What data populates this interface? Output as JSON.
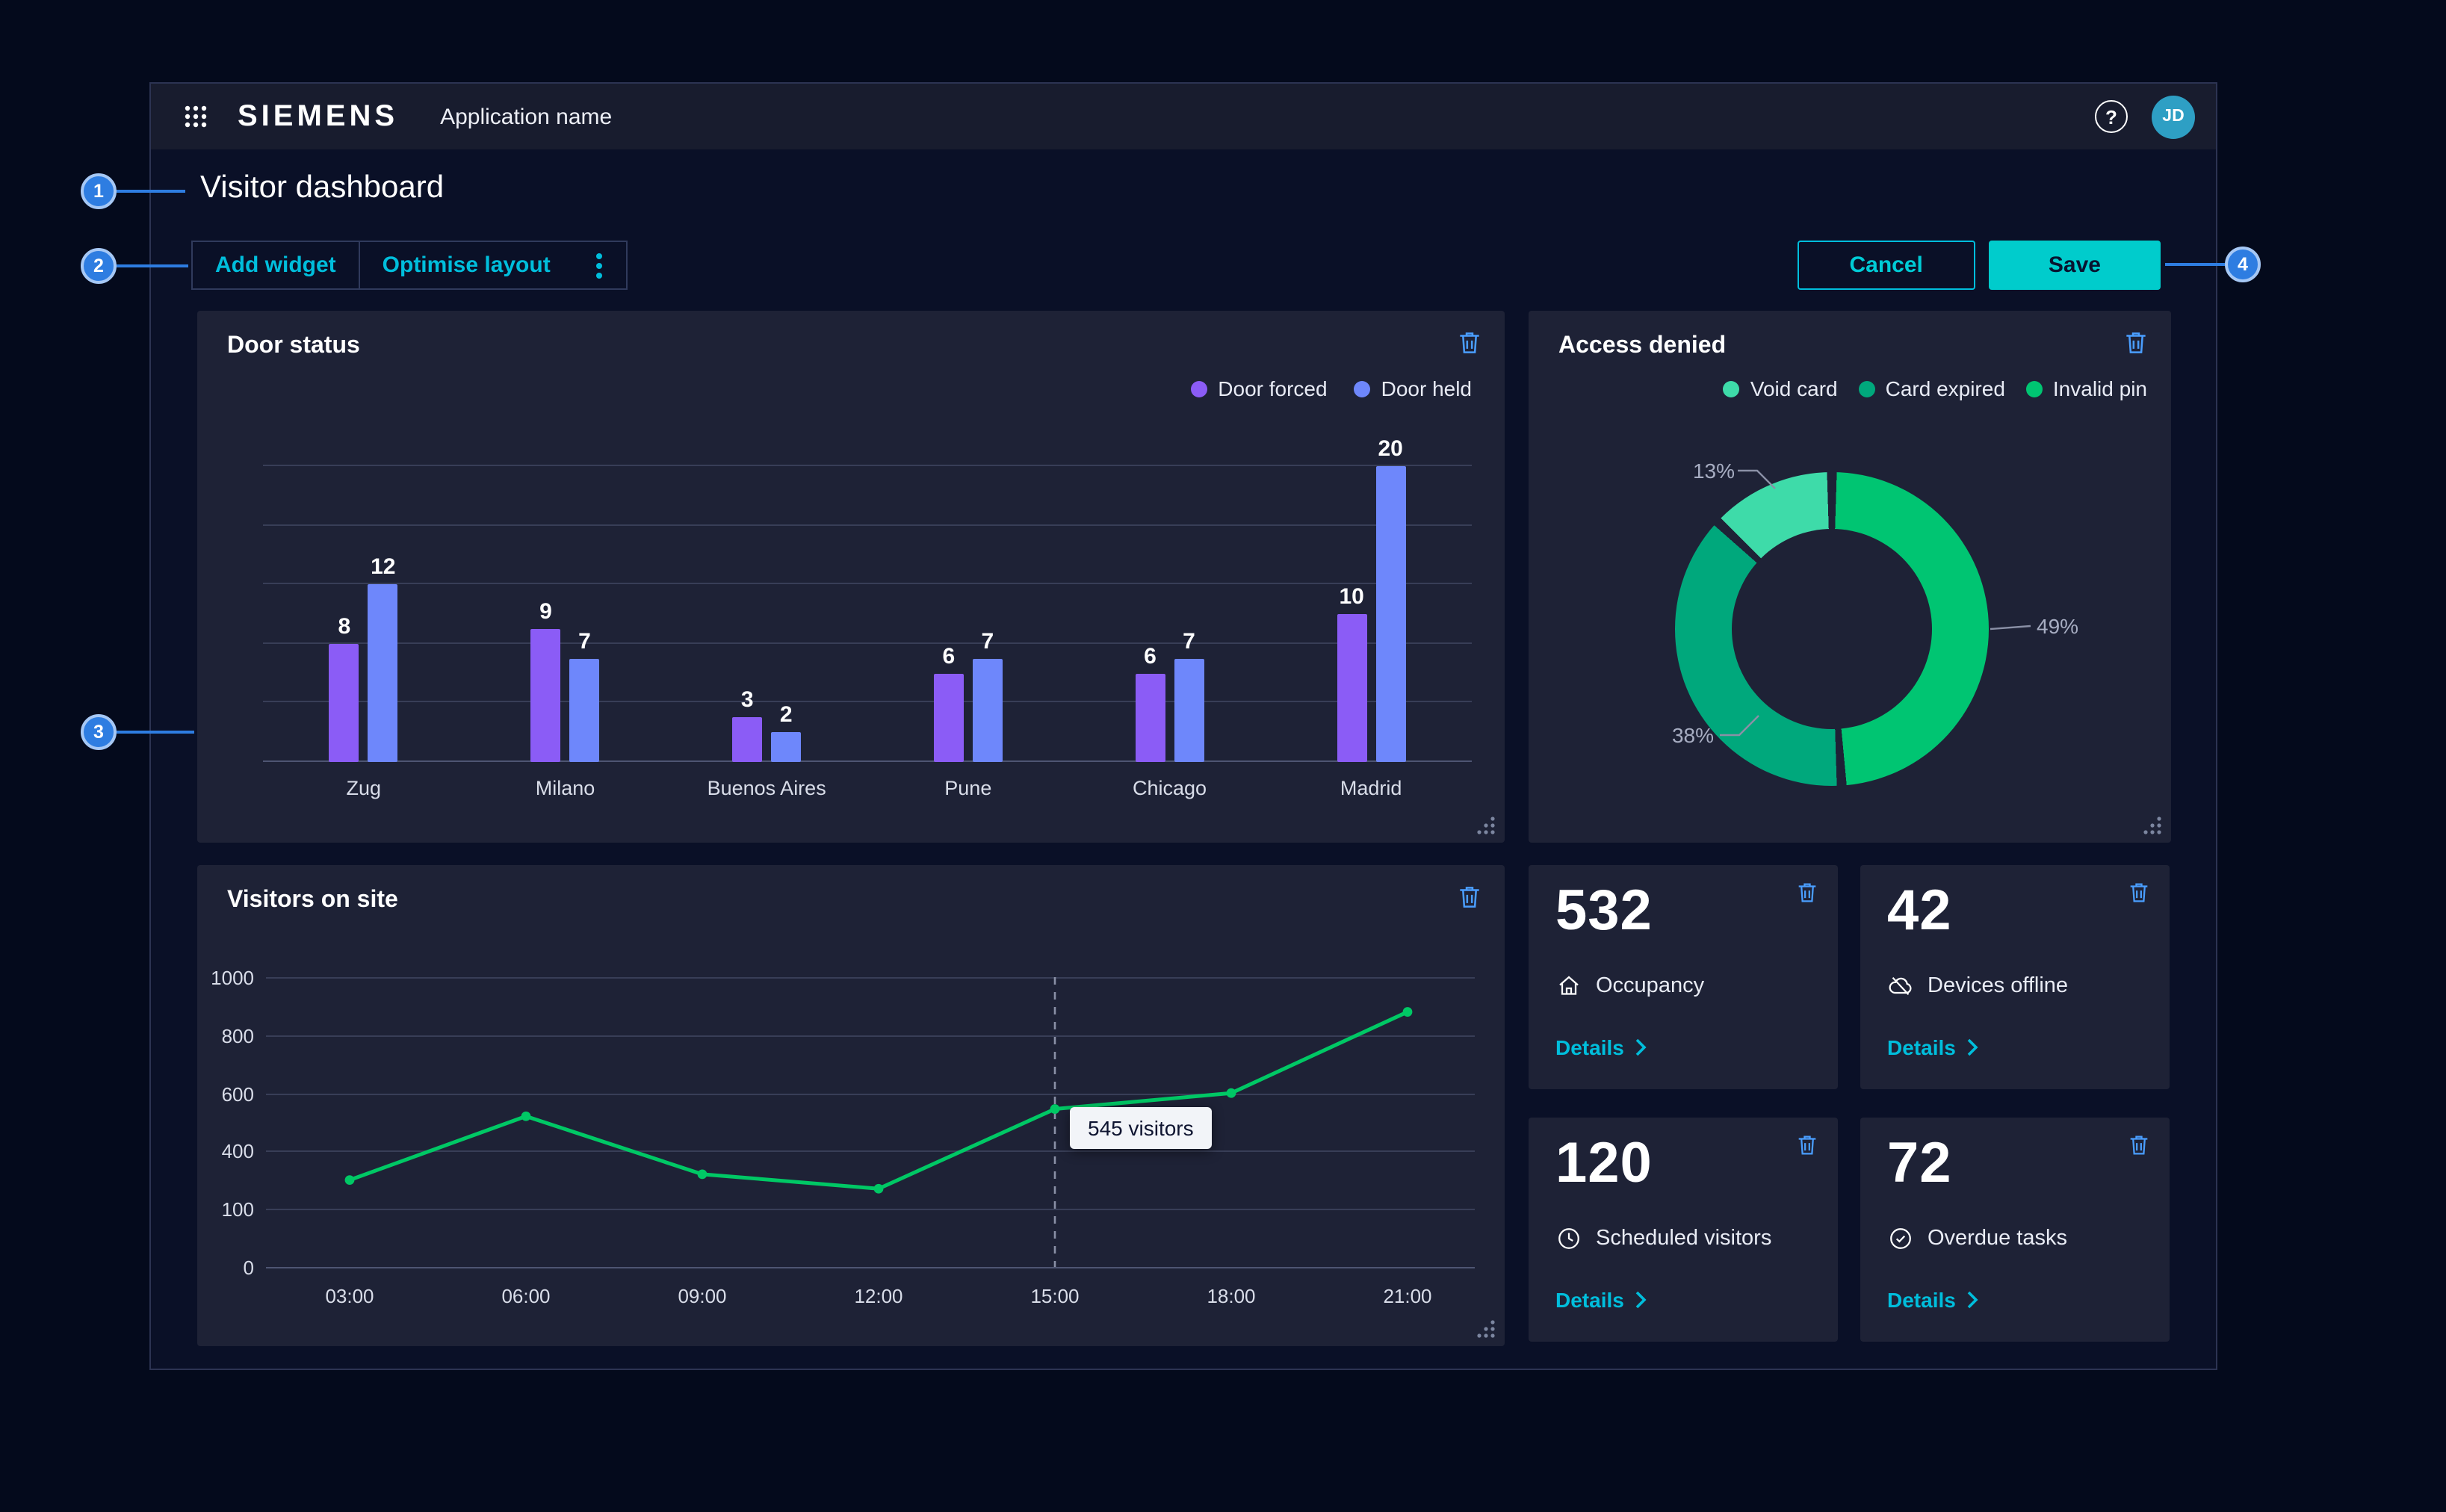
{
  "header": {
    "logo": "SIEMENS",
    "app_name": "Application name",
    "avatar_initials": "JD",
    "help_label": "?"
  },
  "page": {
    "title": "Visitor dashboard"
  },
  "toolbar": {
    "add_widget": "Add widget",
    "optimise_layout": "Optimise layout",
    "cancel": "Cancel",
    "save": "Save"
  },
  "annotations": {
    "n1": "1",
    "n2": "2",
    "n3": "3",
    "n4": "4"
  },
  "widgets": {
    "access_denied": {
      "legend": [
        {
          "label": "Void card",
          "color": "#3EDBA9"
        },
        {
          "label": "Card expired",
          "color": "#00A87C"
        },
        {
          "label": "Invalid pin",
          "color": "#00C572"
        }
      ]
    },
    "kpis": [
      {
        "value": "532",
        "label": "Occupancy",
        "details": "Details"
      },
      {
        "value": "42",
        "label": "Devices offline",
        "details": "Details"
      },
      {
        "value": "120",
        "label": "Scheduled visitors",
        "details": "Details"
      },
      {
        "value": "72",
        "label": "Overdue tasks",
        "details": "Details"
      }
    ]
  },
  "chart_data": [
    {
      "type": "bar",
      "title": "Door status",
      "categories": [
        "Zug",
        "Milano",
        "Buenos Aires",
        "Pune",
        "Chicago",
        "Madrid"
      ],
      "series": [
        {
          "name": "Door forced",
          "color": "#8B5CF6",
          "values": [
            8,
            9,
            3,
            6,
            6,
            10
          ]
        },
        {
          "name": "Door held",
          "color": "#6E87FB",
          "values": [
            12,
            7,
            2,
            7,
            7,
            20
          ]
        }
      ],
      "ylim": [
        0,
        20
      ],
      "grid": true,
      "value_labels": true,
      "legend_position": "top-right"
    },
    {
      "type": "pie",
      "donut": true,
      "title": "Access denied",
      "labels": [
        "Invalid pin",
        "Card expired",
        "Void card"
      ],
      "values": [
        49,
        38,
        13
      ],
      "colors": [
        "#00C572",
        "#00A87C",
        "#3EDBA9"
      ],
      "callout_labels": [
        "49%",
        "38%",
        "13%"
      ],
      "start_angle": "top",
      "direction": "clockwise",
      "legend_position": "top-right"
    },
    {
      "type": "line",
      "title": "Visitors on site",
      "x": [
        "03:00",
        "06:00",
        "09:00",
        "12:00",
        "15:00",
        "18:00",
        "21:00"
      ],
      "values": [
        300,
        520,
        320,
        270,
        545,
        600,
        880
      ],
      "ylim": [
        0,
        1000
      ],
      "ytick_labels": [
        "1000",
        "800",
        "600",
        "400",
        "100",
        "0"
      ],
      "color": "#00C865",
      "grid": true,
      "marker": "dot",
      "annotation": {
        "x": "15:00",
        "label": "545 visitors"
      }
    }
  ]
}
